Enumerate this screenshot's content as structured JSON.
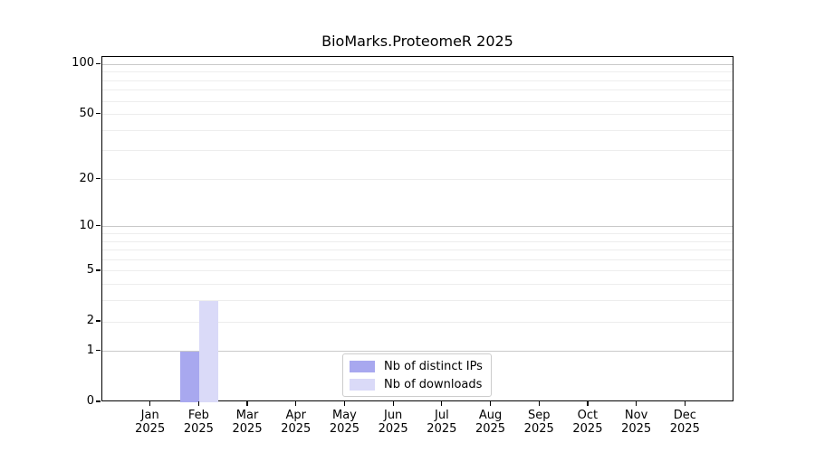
{
  "title": "BioMarks.ProteomeR 2025",
  "chart_data": {
    "type": "bar",
    "title": "BioMarks.ProteomeR 2025",
    "categories": [
      "Jan",
      "Feb",
      "Mar",
      "Apr",
      "May",
      "Jun",
      "Jul",
      "Aug",
      "Sep",
      "Oct",
      "Nov",
      "Dec"
    ],
    "year_label": "2025",
    "series": [
      {
        "name": "Nb of distinct IPs",
        "color": "#a8a8ef",
        "values": [
          0,
          1,
          0,
          0,
          0,
          0,
          0,
          0,
          0,
          0,
          0,
          0
        ]
      },
      {
        "name": "Nb of downloads",
        "color": "#dadaf8",
        "values": [
          0,
          3,
          0,
          0,
          0,
          0,
          0,
          0,
          0,
          0,
          0,
          0
        ]
      }
    ],
    "xlabel": "",
    "ylabel": "",
    "yscale": "log1p",
    "ylim": [
      0,
      111
    ],
    "ytick_values": [
      0,
      1,
      2,
      5,
      10,
      20,
      50,
      100
    ],
    "ytick_labels": [
      "0",
      "1",
      "2",
      "5",
      "10",
      "20",
      "50",
      "100"
    ],
    "major_gridline_values": [
      1,
      10,
      100
    ],
    "minor_gridline_values": [
      2,
      3,
      4,
      5,
      6,
      7,
      8,
      9,
      20,
      30,
      40,
      50,
      60,
      70,
      80,
      90
    ],
    "grid": "horizontal",
    "legend_position": "lower-center-inside",
    "colors": {
      "axis": "#000000",
      "major_grid": "#c9c9c9",
      "minor_grid": "#ededed",
      "legend_border": "#cccccc",
      "background": "#ffffff"
    }
  }
}
